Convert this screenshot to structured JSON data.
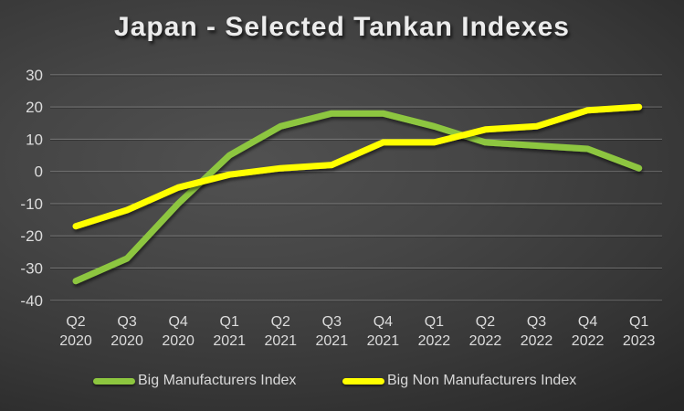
{
  "title": "Japan - Selected Tankan Indexes",
  "legend": {
    "items": [
      {
        "label": "Big Manufacturers Index",
        "color": "#8DC63F"
      },
      {
        "label": "Big Non Manufacturers Index",
        "color": "#FFFF00"
      }
    ]
  },
  "chart_data": {
    "type": "line",
    "title": "Japan - Selected Tankan Indexes",
    "categories": [
      "Q2 2020",
      "Q3 2020",
      "Q4 2020",
      "Q1 2021",
      "Q2 2021",
      "Q3 2021",
      "Q4 2021",
      "Q1 2022",
      "Q2 2022",
      "Q3 2022",
      "Q4 2022",
      "Q1 2023"
    ],
    "series": [
      {
        "name": "Big Manufacturers Index",
        "color": "#8DC63F",
        "values": [
          -34,
          -27,
          -10,
          5,
          14,
          18,
          18,
          14,
          9,
          8,
          7,
          1
        ]
      },
      {
        "name": "Big Non Manufacturers Index",
        "color": "#FFFF00",
        "values": [
          -17,
          -12,
          -5,
          -1,
          1,
          2,
          9,
          9,
          13,
          14,
          19,
          20
        ]
      }
    ],
    "xlabel": "",
    "ylabel": "",
    "ylim": [
      -40,
      30
    ],
    "yticks": [
      30,
      20,
      10,
      0,
      -10,
      -20,
      -30,
      -40
    ],
    "grid": true,
    "legend_position": "bottom"
  }
}
